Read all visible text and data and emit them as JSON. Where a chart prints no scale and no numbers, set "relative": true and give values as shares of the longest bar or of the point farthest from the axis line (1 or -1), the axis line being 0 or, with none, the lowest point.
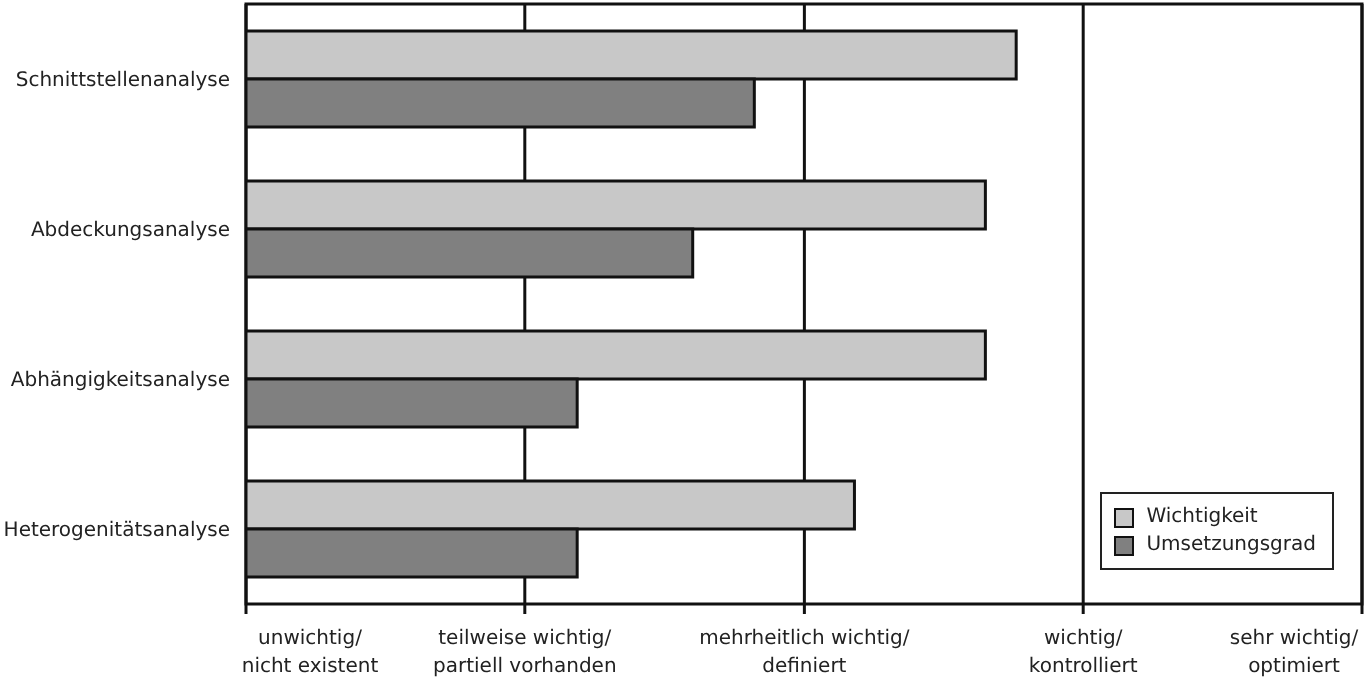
{
  "chart_data": {
    "type": "bar",
    "orientation": "horizontal",
    "relative": true,
    "categories": [
      "Schnittstellenanalyse",
      "Abdeckungsanalyse",
      "Abhängigkeitsanalyse",
      "Heterogenitätsanalyse"
    ],
    "series": [
      {
        "name": "Wichtigkeit",
        "color": "#c8c8c8",
        "values": [
          1,
          0.96,
          0.96,
          0.79
        ]
      },
      {
        "name": "Umsetzungsgrad",
        "color": "#808080",
        "values": [
          0.66,
          0.58,
          0.43,
          0.43
        ]
      }
    ],
    "ref_lines": [
      {
        "axis": "x",
        "value": 0,
        "label": "unwichtig/\nnicht existent"
      },
      {
        "axis": "x",
        "value": 0.362,
        "label": "teilweise wichtig/\npartiell vorhanden"
      },
      {
        "axis": "x",
        "value": 0.725,
        "label": "mehrheitlich wichtig/\ndefiniert"
      },
      {
        "axis": "x",
        "value": 1.087,
        "label": "wichtig/\nkontrolliert"
      },
      {
        "axis": "x",
        "value": 1.449,
        "label": "sehr wichtig/\noptimiert"
      }
    ],
    "legend": "bottom right"
  }
}
